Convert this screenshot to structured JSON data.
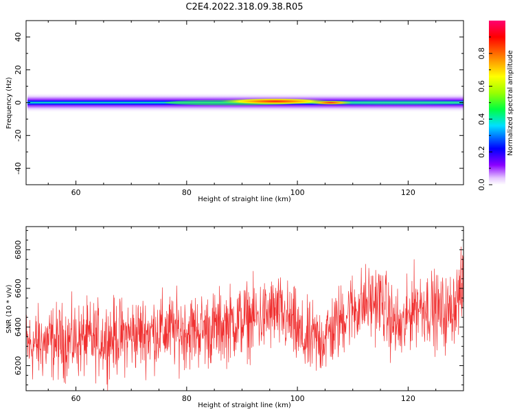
{
  "figure": {
    "title": "C2E4.2022.318.09.38.R05"
  },
  "chart_data": [
    {
      "type": "heatmap",
      "xlabel": "Height of straight line (km)",
      "ylabel": "Frequency (Hz)",
      "xlim": [
        51,
        130
      ],
      "ylim": [
        -50,
        50
      ],
      "xticks": [
        60,
        80,
        100,
        120
      ],
      "yticks": [
        40,
        20,
        0,
        -20,
        -40
      ],
      "colorbar": {
        "label": "Normalized spectral amplitude",
        "ticks": [
          0.0,
          0.2,
          0.4,
          0.6,
          0.8
        ],
        "range": [
          0,
          1
        ]
      },
      "band": {
        "center_freq_hz": 0,
        "approx_halfwidth_hz": 3,
        "peak_height_km": 96,
        "secondary_peak_height_km": 106,
        "colormap": "rainbow"
      },
      "grid": false
    },
    {
      "type": "line",
      "xlabel": "Height of straight line (km)",
      "ylabel": "SNR (10 * v/v)",
      "xlim": [
        51,
        130
      ],
      "ylim": [
        6070,
        6920
      ],
      "xticks": [
        60,
        80,
        100,
        120
      ],
      "yticks": [
        6200,
        6400,
        6600,
        6800
      ],
      "color": "#f03030",
      "grid": false,
      "series": [
        {
          "x": [
            51,
            55,
            60,
            65,
            70,
            75,
            80,
            85,
            88,
            91,
            94,
            96,
            99,
            101,
            104,
            107,
            109,
            112,
            115,
            117,
            119,
            121,
            124,
            127,
            130
          ],
          "values": [
            6300,
            6320,
            6330,
            6340,
            6360,
            6380,
            6380,
            6390,
            6420,
            6440,
            6450,
            6480,
            6420,
            6330,
            6330,
            6400,
            6480,
            6520,
            6540,
            6430,
            6380,
            6520,
            6500,
            6460,
            6600
          ]
        }
      ]
    }
  ]
}
